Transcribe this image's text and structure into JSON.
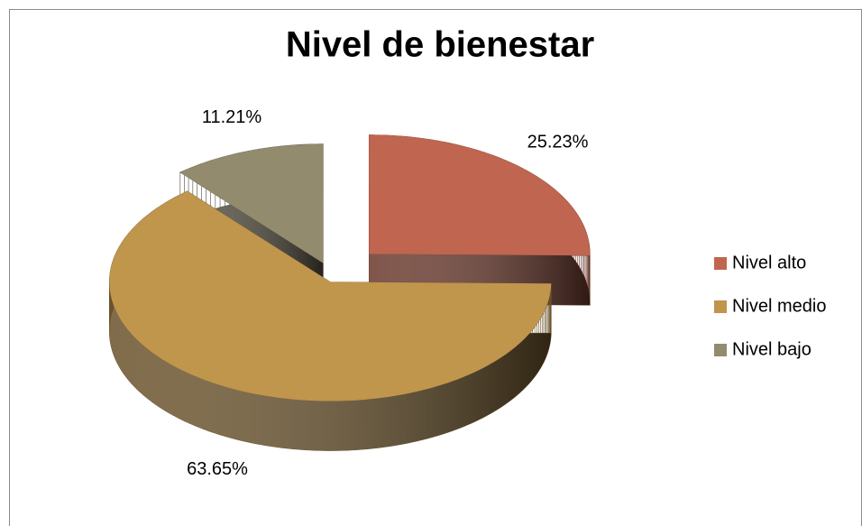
{
  "chart_data": {
    "type": "pie",
    "title": "Nivel de bienestar",
    "categories": [
      "Nivel alto",
      "Nivel medio",
      "Nivel bajo"
    ],
    "values": [
      25.23,
      63.65,
      11.21
    ],
    "value_labels": [
      "25.23%",
      "63.65%",
      "11.21%"
    ],
    "colors": [
      "#c0654f",
      "#c0954c",
      "#938b6e"
    ],
    "legend": "right"
  }
}
